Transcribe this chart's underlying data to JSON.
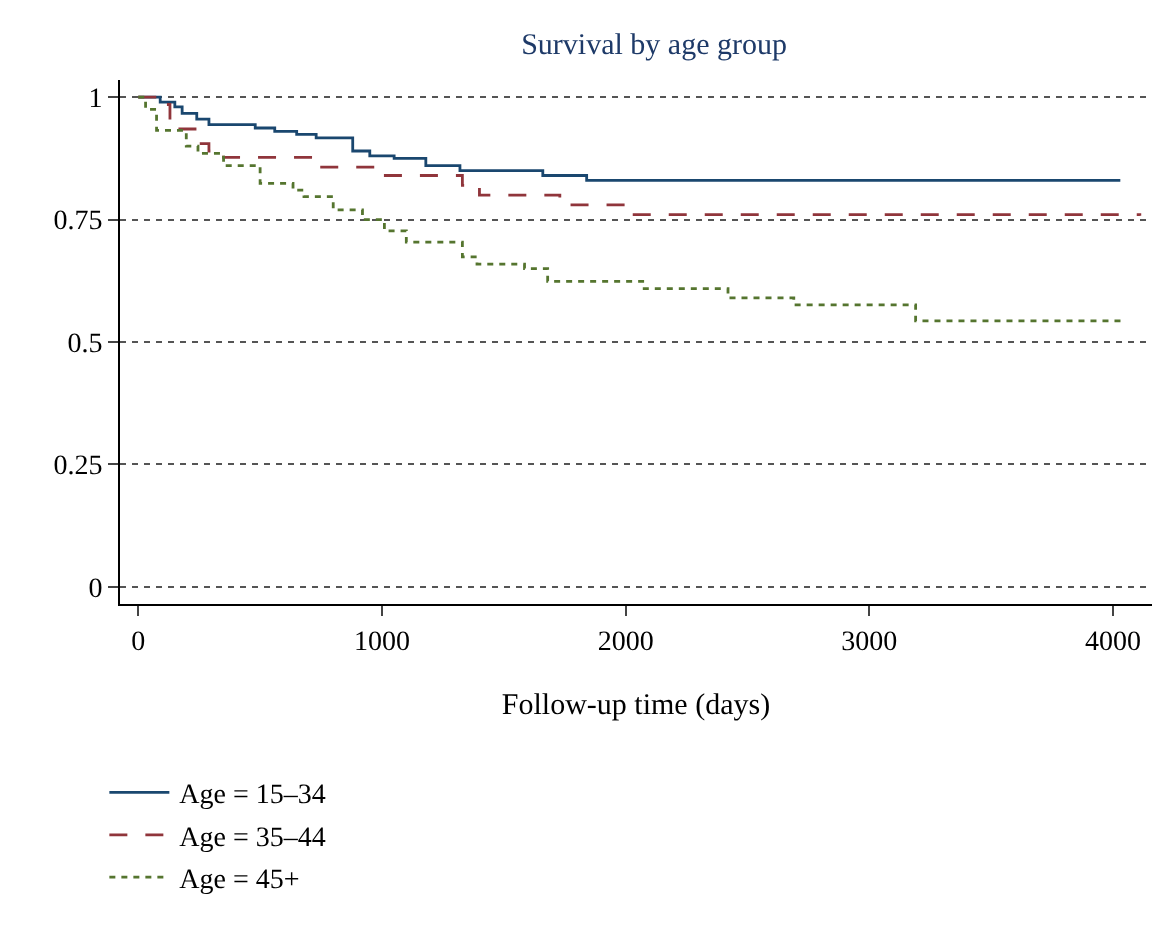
{
  "chart_data": {
    "type": "step",
    "title": "Survival by age group",
    "xlabel": "Follow-up time (days)",
    "xlim": [
      -75,
      4160
    ],
    "xticks": [
      0,
      1000,
      2000,
      3000,
      4000
    ],
    "ylim": [
      -0.035,
      1.035
    ],
    "yticks": [
      0,
      0.25,
      0.5,
      0.75,
      1
    ],
    "grid": "y",
    "legend": "bottom left",
    "marker": "none",
    "series": [
      {
        "name": "Age = 15–34",
        "color": "#1a476f",
        "line_style": "solid",
        "x": [
          0,
          90,
          150,
          180,
          240,
          290,
          480,
          560,
          650,
          730,
          880,
          950,
          1050,
          1180,
          1320,
          1660,
          1840,
          4030
        ],
        "values": [
          1,
          0.99,
          0.98,
          0.967,
          0.955,
          0.944,
          0.937,
          0.93,
          0.924,
          0.917,
          0.89,
          0.88,
          0.875,
          0.86,
          0.85,
          0.84,
          0.83,
          0.83
        ]
      },
      {
        "name": "Age = 35–44",
        "color": "#90353b",
        "line_style": "dashed",
        "x": [
          0,
          100,
          130,
          240,
          290,
          350,
          740,
          1000,
          1330,
          1400,
          1730,
          1990,
          4110
        ],
        "values": [
          1,
          0.985,
          0.935,
          0.905,
          0.89,
          0.877,
          0.857,
          0.84,
          0.82,
          0.8,
          0.78,
          0.76,
          0.758
        ]
      },
      {
        "name": "Age = 45+",
        "color": "#55752f",
        "line_style": "dotted",
        "x": [
          0,
          30,
          75,
          197,
          245,
          350,
          500,
          635,
          680,
          800,
          920,
          1010,
          1100,
          1330,
          1390,
          1585,
          1680,
          2070,
          2420,
          2690,
          3190,
          4036
        ],
        "values": [
          1,
          0.975,
          0.932,
          0.9,
          0.885,
          0.86,
          0.824,
          0.81,
          0.797,
          0.77,
          0.75,
          0.727,
          0.704,
          0.674,
          0.659,
          0.65,
          0.624,
          0.609,
          0.59,
          0.576,
          0.543,
          0.543
        ]
      }
    ]
  }
}
